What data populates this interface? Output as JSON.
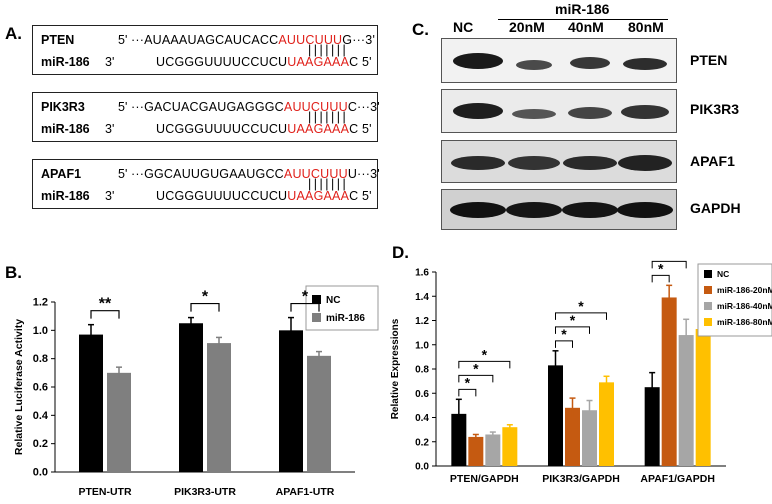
{
  "panels": {
    "a": "A.",
    "b": "B.",
    "c": "C.",
    "d": "D."
  },
  "sequences": [
    {
      "gene": "PTEN",
      "gene_prefix": "5'",
      "gene_seq_black": "···AUAAAUAGCAUCACC",
      "gene_seq_red": "AUUCUUU",
      "gene_seq_tail": "G···3'",
      "mir": "miR-186",
      "mir_prefix": "3'",
      "mir_seq_black": "UCGGGUUUUCCUCU",
      "mir_seq_red": "UAAGAAA",
      "mir_seq_tail": "C  5'",
      "pairing": "|||||||"
    },
    {
      "gene": "PIK3R3",
      "gene_prefix": "5'",
      "gene_seq_black": "···GACUACGAUGAGGGC",
      "gene_seq_red": "AUUCUUU",
      "gene_seq_tail": "C···3'",
      "mir": "miR-186",
      "mir_prefix": "3'",
      "mir_seq_black": "UCGGGUUUUCCUCU",
      "mir_seq_red": "UAAGAAA",
      "mir_seq_tail": "C  5'",
      "pairing": "|||||||"
    },
    {
      "gene": "APAF1",
      "gene_prefix": "5'",
      "gene_seq_black": "···GGCAUUGUGAAUGCC",
      "gene_seq_red": "AUUCUUU",
      "gene_seq_tail": "U···3'",
      "mir": "miR-186",
      "mir_prefix": "3'",
      "mir_seq_black": "UCGGGUUUUCCUCU",
      "mir_seq_red": "UAAGAAA",
      "mir_seq_tail": "C  5'",
      "pairing": "|||||||"
    }
  ],
  "blot": {
    "group_label": "miR-186",
    "lanes": [
      "NC",
      "20nM",
      "40nM",
      "80nM"
    ],
    "rows": [
      "PTEN",
      "PIK3R3",
      "APAF1",
      "GAPDH"
    ]
  },
  "chart_data": [
    {
      "type": "bar",
      "panel": "B",
      "categories": [
        "PTEN-UTR",
        "PIK3R3-UTR",
        "APAF1-UTR"
      ],
      "series": [
        {
          "name": "NC",
          "color": "#000000",
          "values": [
            0.97,
            1.05,
            1.0
          ],
          "errors": [
            0.07,
            0.04,
            0.09
          ]
        },
        {
          "name": "miR-186",
          "color": "#7f7f7f",
          "values": [
            0.7,
            0.91,
            0.82
          ],
          "errors": [
            0.04,
            0.04,
            0.03
          ]
        }
      ],
      "ylabel": "Relative Luciferase Activity",
      "xlabel": "",
      "ylim": [
        0.0,
        1.2
      ],
      "yticks": [
        "0.0",
        "0.2",
        "0.4",
        "0.6",
        "0.8",
        "1.0",
        "1.2"
      ],
      "significance": [
        "**",
        "*",
        "*"
      ],
      "legend_position": "top-right"
    },
    {
      "type": "bar",
      "panel": "D",
      "categories": [
        "PTEN/GAPDH",
        "PIK3R3/GAPDH",
        "APAF1/GAPDH"
      ],
      "series": [
        {
          "name": "NC",
          "color": "#000000",
          "values": [
            0.43,
            0.83,
            0.65
          ],
          "errors": [
            0.12,
            0.12,
            0.12
          ]
        },
        {
          "name": "miR-186-20nM",
          "color": "#c55a11",
          "values": [
            0.24,
            0.48,
            1.39
          ],
          "errors": [
            0.02,
            0.08,
            0.1
          ]
        },
        {
          "name": "miR-186-40nM",
          "color": "#a6a6a6",
          "values": [
            0.26,
            0.46,
            1.08
          ],
          "errors": [
            0.02,
            0.08,
            0.13
          ]
        },
        {
          "name": "miR-186-80nM",
          "color": "#ffc000",
          "values": [
            0.32,
            0.69,
            1.13
          ],
          "errors": [
            0.02,
            0.05,
            0.09
          ]
        }
      ],
      "ylabel": "Relative Expressions",
      "xlabel": "",
      "ylim": [
        0.0,
        1.6
      ],
      "yticks": [
        "0.0",
        "0.2",
        "0.4",
        "0.6",
        "0.8",
        "1.0",
        "1.2",
        "1.4",
        "1.6"
      ],
      "significance_mark": "*",
      "legend_position": "top-right"
    }
  ]
}
